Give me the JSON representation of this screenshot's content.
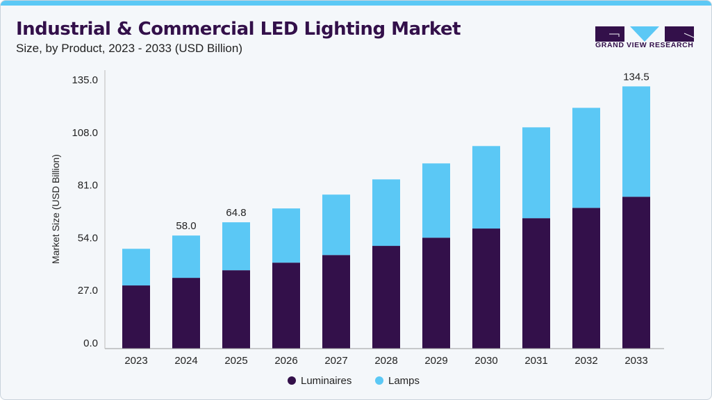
{
  "header": {
    "title": "Industrial & Commercial LED Lighting Market",
    "subtitle": "Size, by Product, 2023 - 2033 (USD Billion)",
    "logo_text": "GRAND VIEW RESEARCH"
  },
  "chart_data": {
    "type": "bar",
    "stacked": true,
    "title": "Industrial & Commercial LED Lighting Market",
    "subtitle": "Size, by Product, 2023 - 2033 (USD Billion)",
    "xlabel": "",
    "ylabel": "Market Size (USD Billion)",
    "ylim": [
      0,
      135
    ],
    "yticks": [
      "0.0",
      "27.0",
      "54.0",
      "81.0",
      "108.0",
      "135.0"
    ],
    "categories": [
      "2023",
      "2024",
      "2025",
      "2026",
      "2027",
      "2028",
      "2029",
      "2030",
      "2031",
      "2032",
      "2033"
    ],
    "series": [
      {
        "name": "Luminaires",
        "color": "#33104a",
        "values": [
          32.4,
          36.3,
          40.2,
          44.1,
          48.0,
          52.7,
          56.9,
          61.6,
          66.9,
          72.2,
          77.9
        ]
      },
      {
        "name": "Lamps",
        "color": "#5bc8f5",
        "values": [
          18.8,
          21.7,
          24.6,
          27.8,
          31.0,
          34.1,
          38.1,
          42.3,
          46.6,
          51.3,
          56.6
        ]
      }
    ],
    "data_labels": {
      "2024": "58.0",
      "2025": "64.8",
      "2033": "134.5"
    },
    "legend": "bottom-center",
    "grid": false
  }
}
